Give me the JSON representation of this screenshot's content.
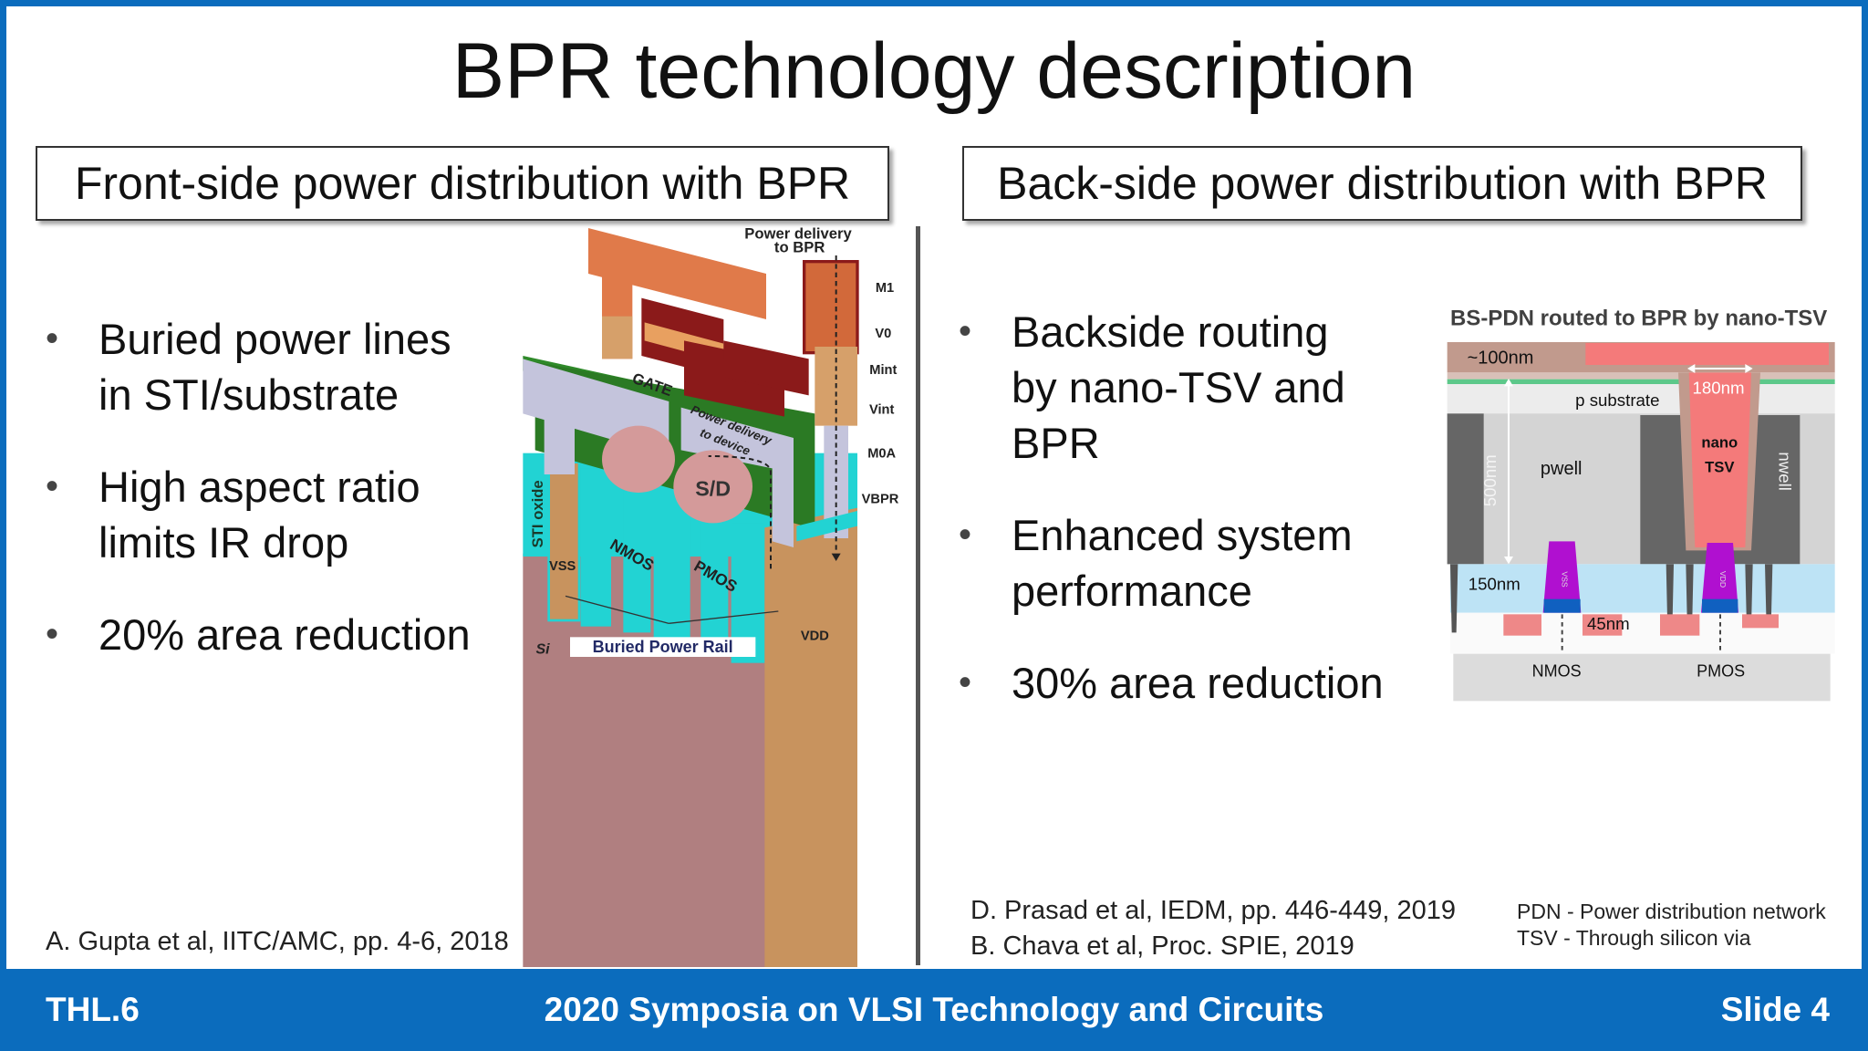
{
  "slide": {
    "title": "BPR technology description",
    "left_header": "Front-side power distribution with BPR",
    "right_header": "Back-side power distribution with BPR",
    "left_bullets": [
      {
        "line1": "Buried power lines",
        "line2": "in STI/substrate"
      },
      {
        "line1": "High aspect ratio",
        "line2": "limits IR drop"
      },
      {
        "line1": "20% area reduction",
        "line2": ""
      }
    ],
    "right_bullets": [
      {
        "line1": "Backside routing",
        "line2": "by nano-TSV and",
        "line3": "BPR"
      },
      {
        "line1": "Enhanced system",
        "line2": "performance",
        "line3": ""
      },
      {
        "line1": "30% area reduction",
        "line2": "",
        "line3": ""
      }
    ],
    "bullet_symbol": "•",
    "left_citation": "A. Gupta et al, IITC/AMC, pp. 4-6, 2018",
    "right_citations": [
      "D. Prasad et al, IEDM, pp. 446-449, 2019",
      "B. Chava et al, Proc. SPIE, 2019"
    ],
    "abbreviations": [
      "PDN - Power distribution network",
      "TSV - Through silicon via"
    ]
  },
  "left_figure": {
    "power_delivery_bpr": [
      "Power delivery",
      "to BPR"
    ],
    "layers": [
      "M1",
      "V0",
      "Mint",
      "Vint",
      "M0A",
      "VBPR"
    ],
    "gate": "GATE",
    "power_delivery_device": [
      "Power delivery",
      "to device"
    ],
    "sd": "S/D",
    "sti": "STI oxide",
    "nmos": "NMOS",
    "pmos": "PMOS",
    "vss": "VSS",
    "vdd": "VDD",
    "si": "Si",
    "bpr": "Buried Power Rail"
  },
  "right_figure": {
    "title": "BS-PDN routed to BPR by nano-TSV",
    "dim_100": "~100nm",
    "dim_180": "180nm",
    "p_substrate": "p substrate",
    "pwell": "pwell",
    "nano": "nano",
    "tsv": "TSV",
    "nwell": "nwell",
    "dim_500": "500nm",
    "dim_150": "150nm",
    "dim_45": "45nm",
    "vss": "VSS",
    "vdd": "VDD",
    "nmos": "NMOS",
    "pmos": "PMOS"
  },
  "footer": {
    "left": "THL.6",
    "center": "2020 Symposia on VLSI Technology and Circuits",
    "right": "Slide 4"
  },
  "colors": {
    "brand_blue": "#0b6cbd",
    "tsv_red": "#f47a7a",
    "sti_cyan": "#22d3d3",
    "metal_orange": "#e07a4a"
  }
}
